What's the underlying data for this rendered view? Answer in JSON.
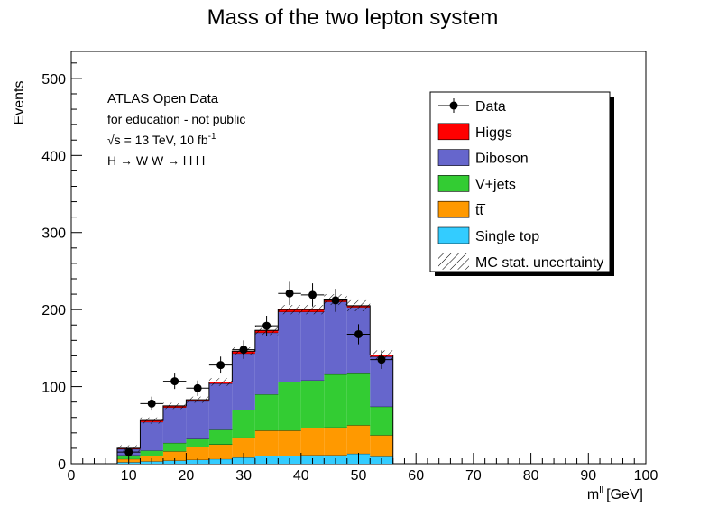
{
  "chart_data": {
    "type": "bar",
    "title": "Mass of the two lepton system",
    "xlabel": "m^{ll} [GeV]",
    "xlabel_main": "m",
    "xlabel_sup": "ll",
    "xlabel_unit": "[GeV]",
    "ylabel": "Events",
    "xlim": [
      0,
      100
    ],
    "ylim": [
      0,
      535
    ],
    "x_ticks": [
      "0",
      "10",
      "20",
      "30",
      "40",
      "50",
      "60",
      "70",
      "80",
      "90",
      "100"
    ],
    "y_ticks": [
      "0",
      "100",
      "200",
      "300",
      "400",
      "500"
    ],
    "bin_edges": [
      8,
      12,
      16,
      20,
      24,
      28,
      32,
      36,
      40,
      44,
      48,
      52,
      56
    ],
    "series": [
      {
        "name": "Single top",
        "color": "#33ccff",
        "values": [
          2,
          3,
          4,
          5,
          6,
          8,
          10,
          10,
          11,
          11,
          13,
          9
        ]
      },
      {
        "name": "t̅t",
        "color": "#ff9900",
        "values": [
          4,
          7,
          12,
          17,
          19,
          26,
          33,
          33,
          35,
          36,
          37,
          28
        ]
      },
      {
        "name": "V+jets",
        "color": "#33cc33",
        "values": [
          5,
          7,
          11,
          10,
          19,
          36,
          47,
          63,
          62,
          69,
          67,
          37
        ]
      },
      {
        "name": "Diboson",
        "color": "#6666cc",
        "values": [
          8,
          37,
          46,
          49,
          60,
          73,
          80,
          91,
          89,
          94,
          86,
          65
        ]
      },
      {
        "name": "Higgs",
        "color": "#ff0000",
        "values": [
          1,
          2,
          2,
          2,
          2,
          3,
          3,
          3,
          3,
          3,
          2,
          2
        ]
      }
    ],
    "mc_uncertainty": [
      4,
      4,
      4,
      4,
      5,
      5,
      6,
      6,
      6,
      7,
      7,
      6
    ],
    "data": [
      {
        "x": 10,
        "y": 15,
        "err": 4
      },
      {
        "x": 14,
        "y": 78,
        "err": 9
      },
      {
        "x": 18,
        "y": 107,
        "err": 10
      },
      {
        "x": 22,
        "y": 98,
        "err": 10
      },
      {
        "x": 26,
        "y": 128,
        "err": 11
      },
      {
        "x": 30,
        "y": 148,
        "err": 12
      },
      {
        "x": 34,
        "y": 179,
        "err": 13
      },
      {
        "x": 38,
        "y": 221,
        "err": 15
      },
      {
        "x": 42,
        "y": 219,
        "err": 15
      },
      {
        "x": 46,
        "y": 212,
        "err": 15
      },
      {
        "x": 50,
        "y": 168,
        "err": 13
      },
      {
        "x": 54,
        "y": 135,
        "err": 12
      }
    ],
    "annotations": {
      "line1": "ATLAS Open Data",
      "line2": "for education - not public",
      "line3": "√s = 13 TeV, 10 fb",
      "line3_sup": "-1",
      "line4": "H → W W",
      "line4_rest": " → l",
      "line4_tail": " l",
      "line4_tail2": " l",
      "line4_end": " l"
    },
    "legend": {
      "position": "top-right",
      "entries": [
        {
          "label": "Data",
          "kind": "marker"
        },
        {
          "label": "Higgs",
          "kind": "fill",
          "color": "#ff0000"
        },
        {
          "label": "Diboson",
          "kind": "fill",
          "color": "#6666cc"
        },
        {
          "label": "V+jets",
          "kind": "fill",
          "color": "#33cc33"
        },
        {
          "label": "tt̅",
          "kind": "fill",
          "color": "#ff9900"
        },
        {
          "label": "Single top",
          "kind": "fill",
          "color": "#33ccff"
        },
        {
          "label": "MC stat. uncertainty",
          "kind": "hatch"
        }
      ]
    }
  }
}
